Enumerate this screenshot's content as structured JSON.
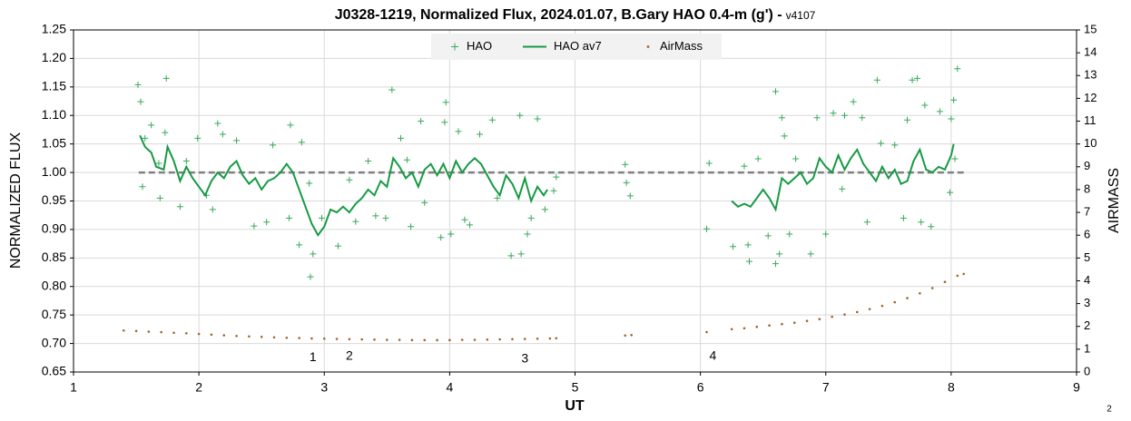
{
  "chart_data": {
    "type": "scatter",
    "title": "J0328-1219, Normalized Flux, 2024.01.07, B.Gary HAO 0.4-m (g') -",
    "version": "v4107",
    "xlabel": "UT",
    "ylabel": "NORMALIZED FLUX",
    "y2label": "AIRMASS",
    "corner_note": "2",
    "grid": true,
    "legend": "top",
    "xlim": [
      1,
      9
    ],
    "xticks": [
      1,
      2,
      3,
      4,
      5,
      6,
      7,
      8,
      9
    ],
    "ylim": [
      0.65,
      1.25
    ],
    "yticks": [
      0.65,
      {
        "value": 0.7,
        "label": "0.70"
      },
      0.75,
      {
        "value": 0.8,
        "label": "0.80"
      },
      0.85,
      {
        "value": 0.9,
        "label": "0.90"
      },
      0.95,
      {
        "value": 1.0,
        "label": "1.00"
      },
      1.05,
      {
        "value": 1.1,
        "label": "1.10"
      },
      1.15,
      {
        "value": 1.2,
        "label": "1.20"
      },
      1.25
    ],
    "y2lim": [
      0,
      15
    ],
    "y2ticks": [
      0,
      1,
      2,
      3,
      4,
      5,
      6,
      7,
      8,
      9,
      10,
      11,
      12,
      13,
      14,
      15
    ],
    "reference_line": {
      "y": 1.0,
      "x": [
        1.52,
        8.1
      ],
      "color": "#808080"
    },
    "annotations": [
      {
        "text": "1",
        "x": 2.91,
        "y": 0.675
      },
      {
        "text": "2",
        "x": 3.2,
        "y": 0.677
      },
      {
        "text": "3",
        "x": 4.6,
        "y": 0.673
      },
      {
        "text": "4",
        "x": 6.1,
        "y": 0.677
      }
    ],
    "series": [
      {
        "name": "HAO",
        "color": "#3aa85a",
        "style": "marker",
        "x": [
          1.514,
          1.536,
          1.55,
          1.57,
          1.62,
          1.68,
          1.69,
          1.74,
          1.73,
          1.85,
          1.9,
          1.99,
          2.06,
          2.11,
          2.15,
          2.19,
          2.3,
          2.44,
          2.54,
          2.59,
          2.72,
          2.73,
          2.8,
          2.82,
          2.89,
          2.91,
          2.88,
          2.98,
          3.11,
          3.2,
          3.25,
          3.35,
          3.41,
          3.49,
          3.54,
          3.61,
          3.66,
          3.69,
          3.8,
          3.77,
          3.93,
          3.97,
          3.96,
          4.01,
          4.07,
          4.12,
          4.16,
          4.24,
          4.34,
          4.38,
          4.49,
          4.56,
          4.57,
          4.62,
          4.65,
          4.7,
          4.76,
          4.83,
          4.85,
          5.4,
          5.41,
          5.44,
          6.05,
          6.07,
          6.26,
          6.35,
          6.38,
          6.39,
          6.46,
          6.54,
          6.6,
          6.6,
          6.63,
          6.65,
          6.67,
          6.71,
          6.76,
          6.88,
          6.93,
          7.0,
          7.06,
          7.13,
          7.15,
          7.22,
          7.29,
          7.33,
          7.41,
          7.44,
          7.55,
          7.62,
          7.65,
          7.69,
          7.73,
          7.76,
          7.79,
          7.84,
          7.91,
          7.99,
          8.0,
          8.02,
          8.05,
          8.03
        ],
        "values": [
          1.154,
          1.124,
          0.975,
          1.06,
          1.083,
          1.016,
          0.955,
          1.165,
          1.07,
          0.94,
          1.02,
          1.06,
          0.96,
          0.935,
          1.086,
          1.067,
          1.056,
          0.906,
          0.913,
          1.048,
          0.92,
          1.083,
          0.873,
          1.053,
          0.817,
          0.857,
          0.981,
          0.92,
          0.871,
          0.987,
          0.914,
          1.02,
          0.924,
          0.92,
          1.145,
          1.06,
          1.022,
          0.905,
          0.947,
          1.09,
          0.886,
          1.123,
          1.088,
          0.892,
          1.072,
          0.917,
          0.908,
          1.067,
          1.092,
          0.955,
          0.854,
          1.1,
          0.857,
          0.892,
          0.92,
          1.094,
          0.935,
          0.968,
          0.992,
          1.014,
          0.982,
          0.959,
          0.901,
          1.016,
          0.87,
          1.011,
          0.873,
          0.844,
          1.024,
          0.889,
          0.84,
          1.142,
          0.857,
          1.096,
          1.064,
          0.892,
          1.024,
          0.857,
          1.096,
          0.892,
          1.104,
          0.971,
          1.1,
          1.124,
          1.096,
          0.913,
          1.162,
          1.051,
          1.048,
          0.92,
          1.092,
          1.162,
          1.165,
          0.913,
          1.118,
          0.905,
          1.107,
          0.965,
          1.094,
          1.127,
          1.182,
          1.024
        ]
      },
      {
        "name": "HAO av7",
        "color": "#169a44",
        "style": "line",
        "x": [
          1.53,
          1.57,
          1.62,
          1.66,
          1.72,
          1.75,
          1.8,
          1.85,
          1.9,
          1.95,
          2.0,
          2.05,
          2.1,
          2.15,
          2.2,
          2.25,
          2.3,
          2.35,
          2.4,
          2.45,
          2.5,
          2.55,
          2.6,
          2.65,
          2.7,
          2.75,
          2.8,
          2.85,
          2.9,
          2.95,
          3.0,
          3.05,
          3.1,
          3.15,
          3.2,
          3.25,
          3.3,
          3.35,
          3.4,
          3.45,
          3.5,
          3.55,
          3.6,
          3.65,
          3.7,
          3.75,
          3.8,
          3.85,
          3.9,
          3.95,
          4.0,
          4.05,
          4.1,
          4.15,
          4.2,
          4.25,
          4.3,
          4.35,
          4.4,
          4.45,
          4.5,
          4.55,
          4.6,
          4.65,
          4.7,
          4.75,
          4.78,
          5.5,
          6.25,
          6.3,
          6.35,
          6.4,
          6.45,
          6.5,
          6.55,
          6.6,
          6.65,
          6.7,
          6.75,
          6.8,
          6.85,
          6.9,
          6.95,
          7.0,
          7.05,
          7.1,
          7.15,
          7.2,
          7.25,
          7.3,
          7.35,
          7.4,
          7.45,
          7.5,
          7.55,
          7.6,
          7.65,
          7.7,
          7.75,
          7.8,
          7.85,
          7.9,
          7.95,
          8.0,
          8.02
        ],
        "values": [
          1.065,
          1.045,
          1.035,
          1.01,
          1.005,
          1.045,
          1.02,
          0.985,
          1.01,
          0.99,
          0.975,
          0.96,
          0.985,
          1.0,
          0.99,
          1.01,
          1.02,
          0.995,
          0.98,
          0.99,
          0.97,
          0.985,
          0.99,
          1.0,
          1.015,
          1.0,
          0.97,
          0.94,
          0.91,
          0.89,
          0.905,
          0.935,
          0.93,
          0.94,
          0.93,
          0.945,
          0.955,
          0.97,
          0.96,
          0.985,
          0.975,
          1.025,
          1.01,
          0.99,
          1.0,
          0.975,
          1.005,
          1.015,
          0.995,
          1.015,
          0.99,
          1.02,
          1.0,
          1.015,
          1.025,
          1.015,
          0.995,
          0.975,
          0.96,
          0.995,
          0.98,
          0.955,
          0.99,
          0.95,
          0.975,
          0.96,
          0.97,
          null,
          0.95,
          0.94,
          0.945,
          0.94,
          0.955,
          0.97,
          0.955,
          0.935,
          0.99,
          0.98,
          0.99,
          1.0,
          0.98,
          0.99,
          1.025,
          1.01,
          1.0,
          1.03,
          1.005,
          1.025,
          1.04,
          1.015,
          1.0,
          0.985,
          1.01,
          0.99,
          1.005,
          0.98,
          0.985,
          1.02,
          1.04,
          1.005,
          1.0,
          1.01,
          1.005,
          1.03,
          1.05
        ]
      },
      {
        "name": "AirMass",
        "color": "#a0652a",
        "style": "dot",
        "axis": "y2",
        "x": [
          1.4,
          1.5,
          1.6,
          1.7,
          1.8,
          1.9,
          2.0,
          2.1,
          2.2,
          2.3,
          2.4,
          2.5,
          2.6,
          2.7,
          2.8,
          2.9,
          3.0,
          3.1,
          3.2,
          3.3,
          3.4,
          3.5,
          3.6,
          3.7,
          3.8,
          3.9,
          4.0,
          4.1,
          4.2,
          4.3,
          4.4,
          4.5,
          4.6,
          4.7,
          4.8,
          4.85,
          5.4,
          5.45,
          6.05,
          6.25,
          6.35,
          6.45,
          6.55,
          6.65,
          6.75,
          6.85,
          6.95,
          7.05,
          7.15,
          7.25,
          7.35,
          7.45,
          7.55,
          7.65,
          7.75,
          7.85,
          7.95,
          8.05,
          8.1
        ],
        "values": [
          1.82,
          1.8,
          1.77,
          1.75,
          1.72,
          1.7,
          1.67,
          1.64,
          1.61,
          1.58,
          1.56,
          1.54,
          1.52,
          1.5,
          1.49,
          1.47,
          1.46,
          1.45,
          1.44,
          1.43,
          1.42,
          1.41,
          1.41,
          1.4,
          1.4,
          1.4,
          1.4,
          1.41,
          1.41,
          1.42,
          1.43,
          1.44,
          1.45,
          1.46,
          1.47,
          1.48,
          1.6,
          1.62,
          1.75,
          1.88,
          1.92,
          1.98,
          2.04,
          2.1,
          2.16,
          2.24,
          2.32,
          2.42,
          2.52,
          2.63,
          2.76,
          2.9,
          3.06,
          3.24,
          3.45,
          3.68,
          3.95,
          4.22,
          4.3
        ]
      }
    ]
  }
}
